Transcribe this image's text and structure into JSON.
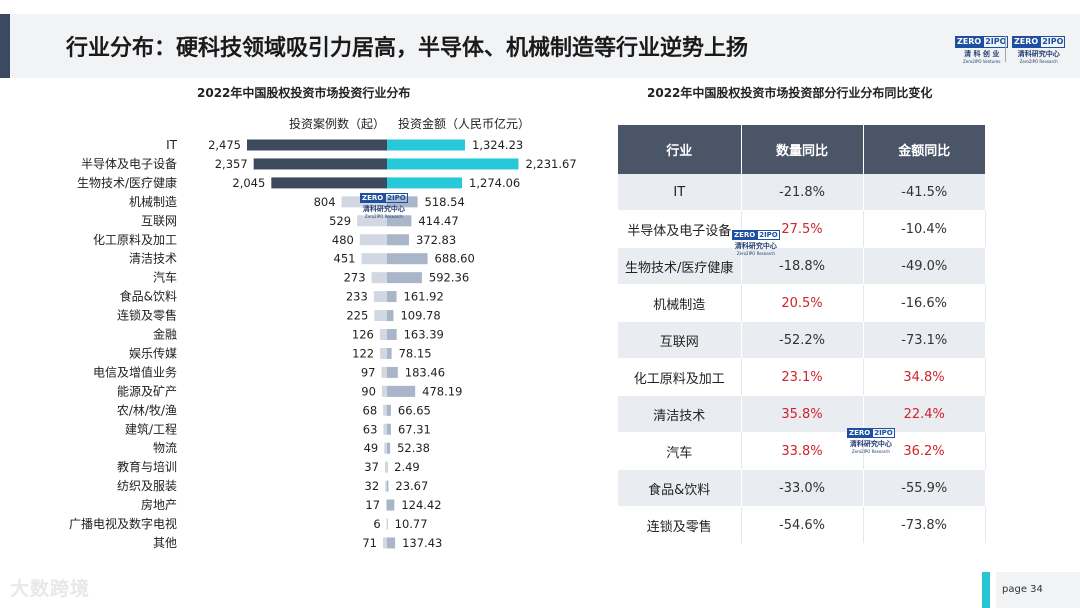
{
  "page": {
    "title": "行业分布：硬科技领域吸引力居高，半导体、机械制造等行业逆势上扬",
    "page_label": "page 34",
    "footer_watermark": "大数跨境"
  },
  "logos": [
    {
      "box_a": "ZERO",
      "box_b": "2IPO",
      "cn": "清 科 创 业",
      "en": "Zero2IPO Ventures"
    },
    {
      "box_a": "ZERO",
      "box_b": "2IPO",
      "cn": "清科研究中心",
      "en": "Zero2IPO Research"
    }
  ],
  "watermark": {
    "box_a": "ZERO",
    "box_b": "2IPO",
    "cn": "清科研究中心",
    "en": "Zero2IPO Research"
  },
  "colors": {
    "count_top3": "#3d4a5e",
    "count_other": "#d2d8e2",
    "amount_top3": "#27c9d8",
    "amount_other": "#a9b5c8",
    "accent": "#27c4d3",
    "header_bg": "#4a5568",
    "positive": "#d0232b"
  },
  "chart_data": [
    {
      "type": "bar",
      "title": "2022年中国股权投资市场投资行业分布",
      "categories": [
        "IT",
        "半导体及电子设备",
        "生物技术/医疗健康",
        "机械制造",
        "互联网",
        "化工原料及加工",
        "清洁技术",
        "汽车",
        "食品&饮料",
        "连锁及零售",
        "金融",
        "娱乐传媒",
        "电信及增值业务",
        "能源及矿产",
        "农/林/牧/渔",
        "建筑/工程",
        "物流",
        "教育与培训",
        "纺织及服装",
        "房地产",
        "广播电视及数字电视",
        "其他"
      ],
      "series": [
        {
          "name": "投资案例数（起）",
          "values": [
            2475,
            2357,
            2045,
            804,
            529,
            480,
            451,
            273,
            233,
            225,
            126,
            122,
            97,
            90,
            68,
            63,
            49,
            37,
            32,
            17,
            6,
            71
          ],
          "labels": [
            "2,475",
            "2,357",
            "2,045",
            "804",
            "529",
            "480",
            "451",
            "273",
            "233",
            "225",
            "126",
            "122",
            "97",
            "90",
            "68",
            "63",
            "49",
            "37",
            "32",
            "17",
            "6",
            "71"
          ]
        },
        {
          "name": "投资金额（人民币亿元）",
          "values": [
            1324.23,
            2231.67,
            1274.06,
            518.54,
            414.47,
            372.83,
            688.6,
            592.36,
            161.92,
            109.78,
            163.39,
            78.15,
            183.46,
            478.19,
            66.65,
            67.31,
            52.38,
            2.49,
            23.67,
            124.42,
            10.77,
            137.43
          ],
          "labels": [
            "1,324.23",
            "2,231.67",
            "1,274.06",
            "518.54",
            "414.47",
            "372.83",
            "688.60",
            "592.36",
            "161.92",
            "109.78",
            "163.39",
            "78.15",
            "183.46",
            "478.19",
            "66.65",
            "67.31",
            "52.38",
            "2.49",
            "23.67",
            "124.42",
            "10.77",
            "137.43"
          ]
        }
      ]
    },
    {
      "type": "table",
      "title": "2022年中国股权投资市场投资部分行业分布同比变化",
      "columns": [
        "行业",
        "数量同比",
        "金额同比"
      ],
      "rows": [
        {
          "industry": "IT",
          "count_yoy": "-21.8%",
          "amount_yoy": "-41.5%"
        },
        {
          "industry": "半导体及电子设备",
          "count_yoy": "27.5%",
          "amount_yoy": "-10.4%"
        },
        {
          "industry": "生物技术/医疗健康",
          "count_yoy": "-18.8%",
          "amount_yoy": "-49.0%"
        },
        {
          "industry": "机械制造",
          "count_yoy": "20.5%",
          "amount_yoy": "-16.6%"
        },
        {
          "industry": "互联网",
          "count_yoy": "-52.2%",
          "amount_yoy": "-73.1%"
        },
        {
          "industry": "化工原料及加工",
          "count_yoy": "23.1%",
          "amount_yoy": "34.8%"
        },
        {
          "industry": "清洁技术",
          "count_yoy": "35.8%",
          "amount_yoy": "22.4%"
        },
        {
          "industry": "汽车",
          "count_yoy": "33.8%",
          "amount_yoy": "36.2%"
        },
        {
          "industry": "食品&饮料",
          "count_yoy": "-33.0%",
          "amount_yoy": "-55.9%"
        },
        {
          "industry": "连锁及零售",
          "count_yoy": "-54.6%",
          "amount_yoy": "-73.8%"
        }
      ]
    }
  ]
}
